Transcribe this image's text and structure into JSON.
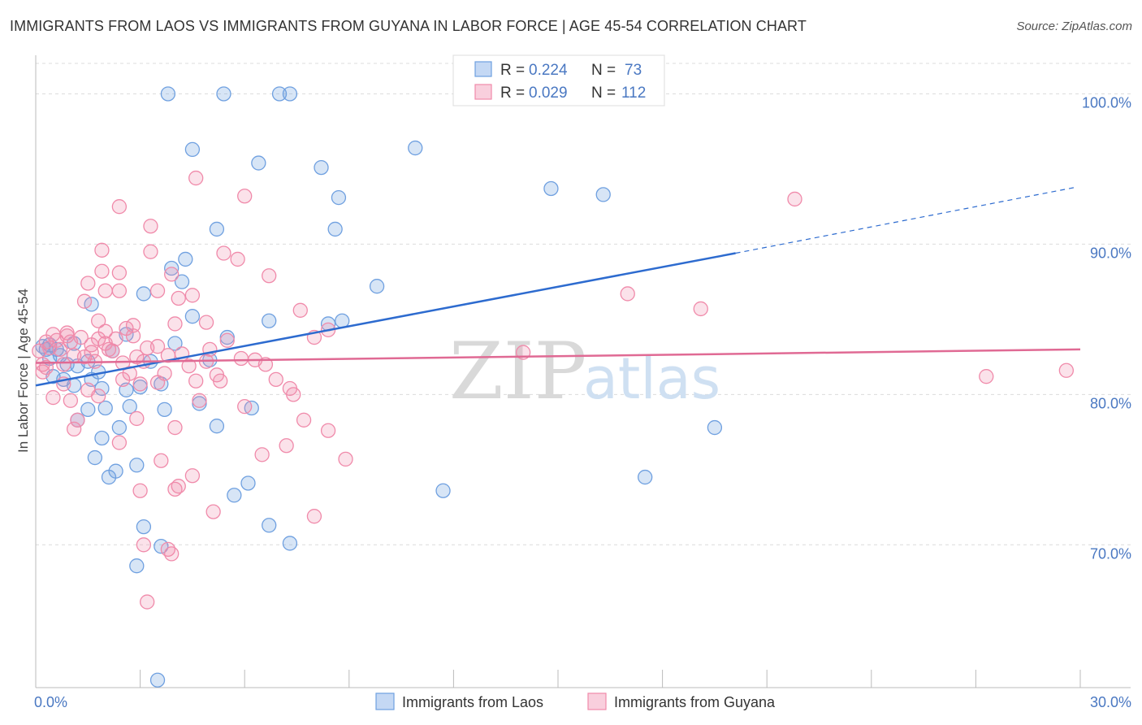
{
  "title": "IMMIGRANTS FROM LAOS VS IMMIGRANTS FROM GUYANA IN LABOR FORCE | AGE 45-54 CORRELATION CHART",
  "source": "Source: ZipAtlas.com",
  "watermark": {
    "zip": "ZIP",
    "atlas": "atlas"
  },
  "chart_data": {
    "type": "scatter",
    "xlabel": "",
    "ylabel": "In Labor Force | Age 45-54",
    "xlim": [
      0,
      30
    ],
    "ylim": [
      60.5,
      103
    ],
    "x_tick_labels": [
      {
        "value": 0,
        "label": "0.0%"
      },
      {
        "value": 30,
        "label": "30.0%"
      }
    ],
    "y_tick_labels": [
      {
        "value": 100,
        "label": "100.0%"
      },
      {
        "value": 90,
        "label": "90.0%"
      },
      {
        "value": 80,
        "label": "80.0%"
      },
      {
        "value": 70,
        "label": "70.0%"
      }
    ],
    "grid": true,
    "legend_position": "top-center",
    "colors": {
      "laos": "#6fa0e0",
      "guyana": "#f08aaa",
      "laos_line": "#2d6bcf",
      "guyana_line": "#e06a94"
    },
    "legend": [
      {
        "key": "laos",
        "r_label": "R = ",
        "r_value": "0.224",
        "n_label": "N = ",
        "n_value": "73"
      },
      {
        "key": "guyana",
        "r_label": "R = ",
        "r_value": "0.029",
        "n_label": "N = ",
        "n_value": "112"
      }
    ],
    "series": [
      {
        "name": "Immigrants from Laos",
        "key": "laos",
        "trend": {
          "x0": 0,
          "y0": 80.6,
          "x1": 20.1,
          "y1": 89.4,
          "dash_to_x": 29.9,
          "dash_to_y": 93.8
        },
        "points": [
          [
            3.8,
            100
          ],
          [
            5.4,
            100
          ],
          [
            7.0,
            100
          ],
          [
            7.3,
            100
          ],
          [
            4.5,
            96.3
          ],
          [
            10.9,
            96.4
          ],
          [
            6.4,
            95.4
          ],
          [
            8.2,
            95.1
          ],
          [
            14.8,
            93.7
          ],
          [
            16.3,
            93.3
          ],
          [
            8.7,
            93.1
          ],
          [
            5.2,
            91.0
          ],
          [
            8.6,
            91.0
          ],
          [
            4.3,
            89.0
          ],
          [
            3.9,
            88.4
          ],
          [
            4.2,
            87.5
          ],
          [
            3.1,
            86.7
          ],
          [
            9.8,
            87.2
          ],
          [
            1.6,
            86.0
          ],
          [
            4.5,
            85.2
          ],
          [
            8.4,
            84.7
          ],
          [
            6.7,
            84.9
          ],
          [
            8.8,
            84.9
          ],
          [
            2.6,
            84.0
          ],
          [
            5.5,
            83.8
          ],
          [
            4.0,
            83.4
          ],
          [
            1.1,
            83.4
          ],
          [
            0.3,
            83.0
          ],
          [
            0.6,
            83.0
          ],
          [
            2.2,
            82.9
          ],
          [
            0.4,
            82.4
          ],
          [
            1.5,
            82.2
          ],
          [
            3.3,
            82.2
          ],
          [
            5.0,
            82.3
          ],
          [
            0.5,
            81.2
          ],
          [
            0.8,
            81.0
          ],
          [
            1.8,
            81.5
          ],
          [
            1.6,
            81.0
          ],
          [
            1.1,
            80.6
          ],
          [
            3.0,
            80.5
          ],
          [
            2.6,
            80.3
          ],
          [
            3.6,
            80.7
          ],
          [
            1.9,
            80.4
          ],
          [
            2.7,
            79.2
          ],
          [
            3.7,
            79.0
          ],
          [
            4.7,
            79.4
          ],
          [
            1.5,
            79.0
          ],
          [
            2.0,
            79.1
          ],
          [
            6.2,
            79.1
          ],
          [
            1.2,
            78.3
          ],
          [
            2.4,
            77.8
          ],
          [
            5.2,
            77.9
          ],
          [
            19.5,
            77.8
          ],
          [
            1.9,
            77.1
          ],
          [
            1.7,
            75.8
          ],
          [
            2.9,
            75.3
          ],
          [
            2.3,
            74.9
          ],
          [
            2.1,
            74.5
          ],
          [
            17.5,
            74.5
          ],
          [
            6.1,
            74.1
          ],
          [
            11.7,
            73.6
          ],
          [
            5.7,
            73.3
          ],
          [
            3.1,
            71.2
          ],
          [
            6.7,
            71.3
          ],
          [
            3.6,
            69.9
          ],
          [
            7.3,
            70.1
          ],
          [
            2.9,
            68.6
          ],
          [
            3.5,
            61.0
          ],
          [
            0.2,
            83.2
          ],
          [
            0.4,
            83.3
          ],
          [
            0.7,
            82.6
          ],
          [
            0.9,
            82.0
          ],
          [
            1.2,
            81.9
          ]
        ]
      },
      {
        "name": "Immigrants from Guyana",
        "key": "guyana",
        "trend": {
          "x0": 0,
          "y0": 82.1,
          "x1": 30,
          "y1": 83.0
        },
        "points": [
          [
            4.6,
            94.4
          ],
          [
            6.0,
            93.2
          ],
          [
            21.8,
            93.0
          ],
          [
            2.4,
            92.5
          ],
          [
            3.3,
            91.2
          ],
          [
            1.9,
            89.6
          ],
          [
            3.3,
            89.5
          ],
          [
            5.4,
            89.4
          ],
          [
            5.8,
            89.0
          ],
          [
            1.9,
            88.2
          ],
          [
            2.4,
            88.1
          ],
          [
            6.7,
            87.9
          ],
          [
            1.5,
            87.4
          ],
          [
            3.9,
            88.0
          ],
          [
            2.0,
            86.9
          ],
          [
            2.4,
            86.9
          ],
          [
            3.5,
            86.9
          ],
          [
            4.5,
            86.6
          ],
          [
            17.0,
            86.7
          ],
          [
            1.4,
            86.2
          ],
          [
            4.1,
            86.4
          ],
          [
            7.6,
            85.6
          ],
          [
            19.1,
            85.7
          ],
          [
            1.8,
            84.9
          ],
          [
            2.8,
            84.6
          ],
          [
            4.0,
            84.7
          ],
          [
            4.9,
            84.8
          ],
          [
            8.4,
            84.3
          ],
          [
            2.0,
            84.2
          ],
          [
            0.5,
            84.0
          ],
          [
            0.9,
            83.9
          ],
          [
            1.8,
            83.7
          ],
          [
            5.5,
            83.6
          ],
          [
            8.0,
            83.8
          ],
          [
            0.3,
            83.5
          ],
          [
            1.0,
            83.5
          ],
          [
            1.6,
            83.3
          ],
          [
            2.1,
            83.0
          ],
          [
            3.5,
            83.2
          ],
          [
            5.0,
            83.0
          ],
          [
            0.7,
            83.0
          ],
          [
            1.1,
            82.6
          ],
          [
            2.2,
            82.9
          ],
          [
            2.9,
            82.5
          ],
          [
            4.9,
            82.2
          ],
          [
            14.0,
            82.8
          ],
          [
            0.2,
            82.0
          ],
          [
            0.8,
            82.0
          ],
          [
            1.7,
            82.2
          ],
          [
            2.5,
            82.1
          ],
          [
            3.7,
            81.4
          ],
          [
            6.6,
            82.0
          ],
          [
            2.7,
            81.4
          ],
          [
            3.5,
            80.8
          ],
          [
            4.6,
            80.9
          ],
          [
            5.3,
            80.9
          ],
          [
            3.0,
            80.7
          ],
          [
            0.3,
            81.8
          ],
          [
            0.8,
            80.7
          ],
          [
            1.5,
            80.3
          ],
          [
            1.8,
            79.9
          ],
          [
            7.4,
            80.0
          ],
          [
            27.3,
            81.2
          ],
          [
            29.6,
            81.6
          ],
          [
            2.5,
            81.0
          ],
          [
            4.7,
            79.6
          ],
          [
            6.0,
            79.2
          ],
          [
            1.0,
            79.6
          ],
          [
            2.9,
            78.4
          ],
          [
            1.2,
            78.3
          ],
          [
            7.7,
            78.3
          ],
          [
            4.0,
            77.8
          ],
          [
            1.1,
            77.7
          ],
          [
            8.4,
            77.6
          ],
          [
            2.4,
            76.8
          ],
          [
            7.2,
            76.6
          ],
          [
            6.5,
            76.0
          ],
          [
            3.6,
            75.6
          ],
          [
            8.9,
            75.7
          ],
          [
            4.5,
            74.6
          ],
          [
            4.1,
            73.9
          ],
          [
            3.0,
            73.6
          ],
          [
            4.0,
            73.7
          ],
          [
            5.1,
            72.2
          ],
          [
            8.0,
            71.9
          ],
          [
            3.8,
            69.7
          ],
          [
            3.1,
            70.0
          ],
          [
            3.9,
            69.4
          ],
          [
            3.2,
            66.2
          ],
          [
            0.4,
            83.1
          ],
          [
            0.6,
            83.6
          ],
          [
            0.9,
            84.1
          ],
          [
            1.3,
            83.8
          ],
          [
            1.6,
            82.8
          ],
          [
            2.0,
            83.4
          ],
          [
            2.3,
            83.7
          ],
          [
            2.6,
            84.4
          ],
          [
            3.2,
            83.1
          ],
          [
            3.8,
            82.6
          ],
          [
            4.2,
            82.7
          ],
          [
            4.4,
            81.9
          ],
          [
            5.2,
            81.3
          ],
          [
            5.9,
            82.4
          ],
          [
            6.3,
            82.3
          ],
          [
            6.9,
            81.0
          ],
          [
            7.3,
            80.4
          ],
          [
            0.5,
            79.8
          ],
          [
            1.4,
            82.5
          ],
          [
            2.8,
            83.9
          ],
          [
            3.1,
            82.2
          ],
          [
            0.1,
            82.9
          ],
          [
            0.2,
            81.5
          ]
        ]
      }
    ]
  }
}
